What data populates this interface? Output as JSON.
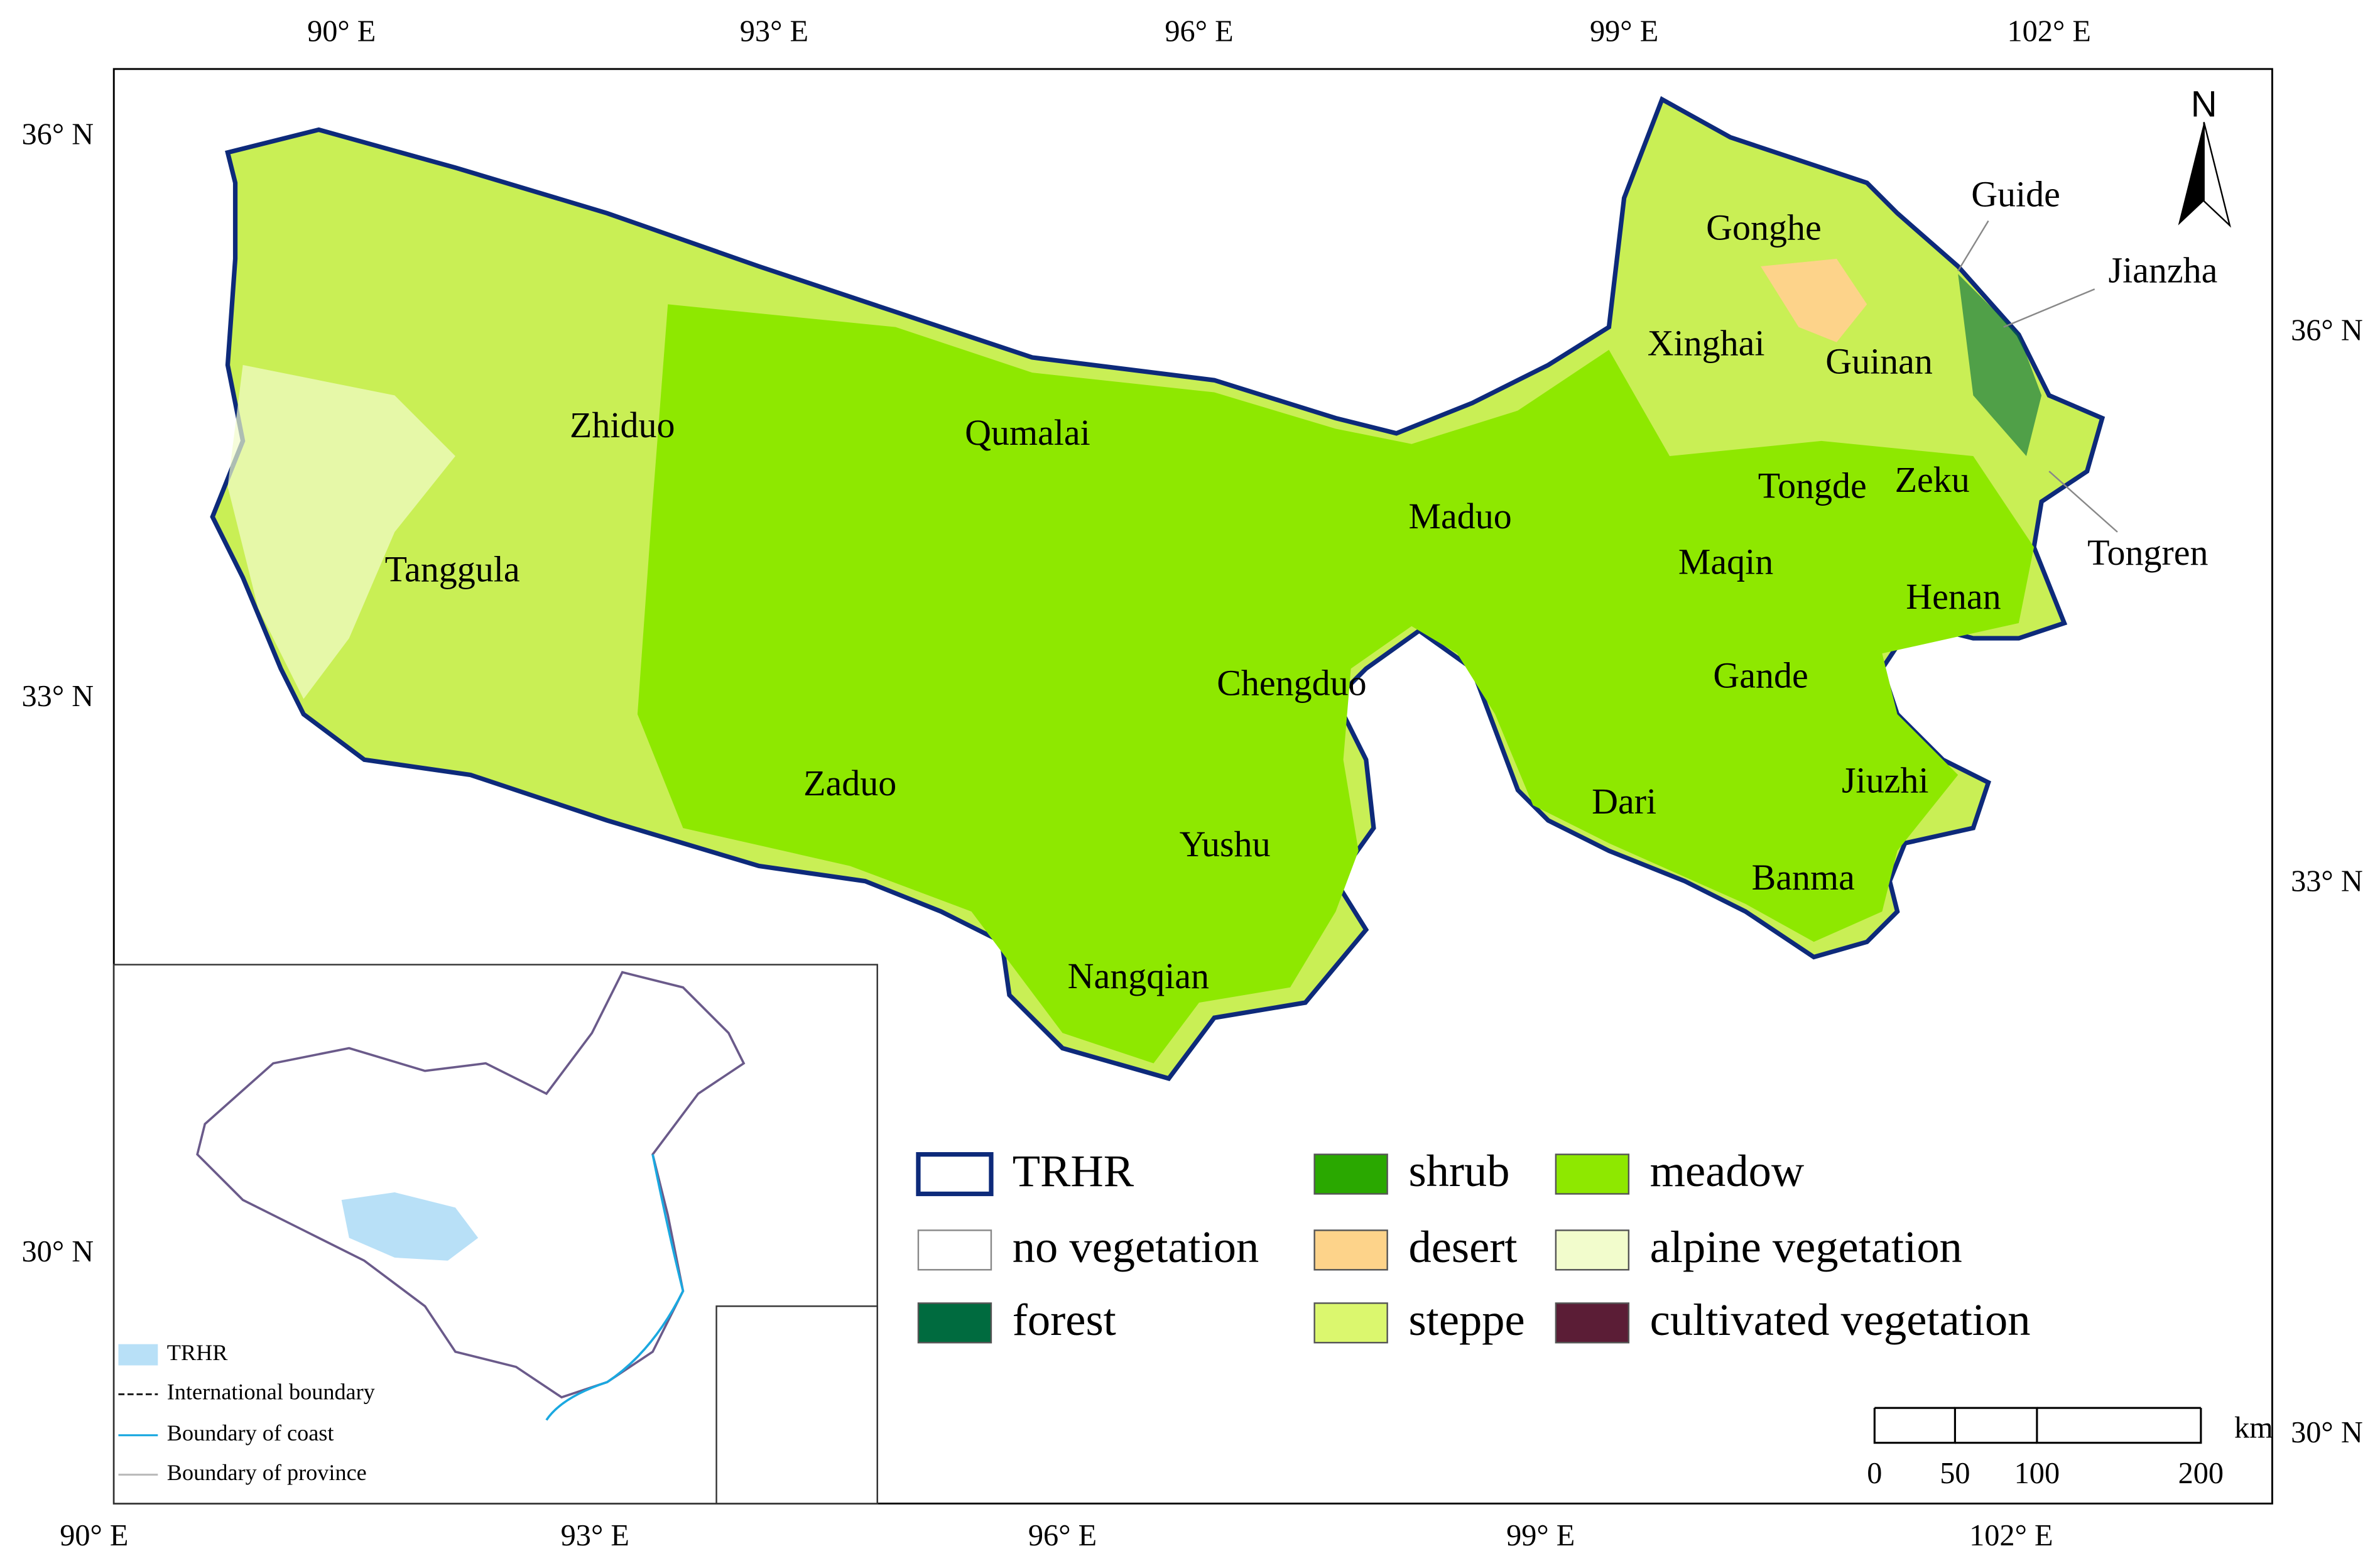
{
  "map": {
    "top_labels": [
      "90° E",
      "93° E",
      "96° E",
      "99° E",
      "102° E"
    ],
    "bottom_labels": [
      "90° E",
      "93° E",
      "96° E",
      "99° E",
      "102° E"
    ],
    "left_labels": [
      "36° N",
      "33° N",
      "30° N"
    ],
    "right_labels": [
      "36° N",
      "33° N",
      "30° N"
    ],
    "north": "N",
    "places": [
      "Gonghe",
      "Guide",
      "Jianzha",
      "Xinghai",
      "Guinan",
      "Zhiduo",
      "Qumalai",
      "Zeku",
      "Tongde",
      "Maduo",
      "Tongren",
      "Tanggula",
      "Maqin",
      "Henan",
      "Chengduo",
      "Gande",
      "Zaduo",
      "Dari",
      "Jiuzhi",
      "Yushu",
      "Banma",
      "Nangqian"
    ],
    "legend": [
      {
        "label": "TRHR",
        "color": "#ffffff",
        "stroke": "#0d2a7a"
      },
      {
        "label": "no vegetation",
        "color": "#ffffff",
        "stroke": "#888888"
      },
      {
        "label": "forest",
        "color": "#006b3f",
        "stroke": "#555555"
      },
      {
        "label": "shrub",
        "color": "#2aa800",
        "stroke": "#555555"
      },
      {
        "label": "desert",
        "color": "#fdd38a",
        "stroke": "#555555"
      },
      {
        "label": "steppe",
        "color": "#dbf76e",
        "stroke": "#555555"
      },
      {
        "label": "meadow",
        "color": "#8ee800",
        "stroke": "#555555"
      },
      {
        "label": "alpine vegetation",
        "color": "#f2fccc",
        "stroke": "#555555"
      },
      {
        "label": "cultivated vegetation",
        "color": "#5b1d36",
        "stroke": "#555555"
      }
    ],
    "inset_legend": [
      {
        "label": "TRHR",
        "color": "#b8e0f7"
      },
      {
        "label": "International boundary",
        "color": "#222222"
      },
      {
        "label": "Boundary of coast",
        "color": "#1aa8e0"
      },
      {
        "label": "Boundary of province",
        "color": "#bbbbbb"
      }
    ],
    "scale": {
      "unit": "km",
      "ticks": [
        "0",
        "50",
        "100",
        "200"
      ]
    }
  }
}
